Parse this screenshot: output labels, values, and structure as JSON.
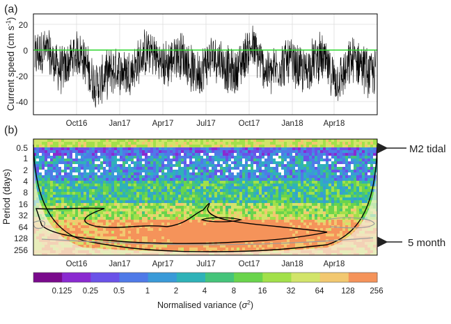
{
  "panel_a": {
    "label": "(a)",
    "ylabel": "Current speed (cm s",
    "ylabel_sup": "-1",
    "ylabel_close": ")"
  },
  "panel_b": {
    "label": "(b)",
    "ylabel": "Period (days)"
  },
  "annotations": {
    "m2": "M2 tidal",
    "five_month": "5 month"
  },
  "colorbar": {
    "label_main": "Normalised variance (",
    "label_sym": "σ",
    "label_sup": "2",
    "label_close": ")",
    "tick_labels": [
      "0.125",
      "0.25",
      "0.5",
      "1",
      "2",
      "4",
      "8",
      "16",
      "32",
      "64",
      "128",
      "256"
    ],
    "colors": [
      "#7a0a8c",
      "#8a2ad0",
      "#6a52e8",
      "#4f7ae8",
      "#3a9ad8",
      "#2fb2b8",
      "#45c47a",
      "#6ad44c",
      "#a2e04a",
      "#d2e46a",
      "#f2c870",
      "#f5935a"
    ]
  },
  "chart_data": [
    {
      "type": "line",
      "title": "",
      "xlabel": "",
      "ylabel": "Current speed (cm s-1)",
      "x_tick_labels": [
        "Oct16",
        "Jan17",
        "Apr17",
        "Jul17",
        "Oct17",
        "Jan18",
        "Apr18"
      ],
      "y_ticks": [
        20,
        0,
        -20,
        -40
      ],
      "ylim": [
        -50,
        25
      ],
      "grid": true,
      "series": [
        {
          "color": "#000000",
          "values": [
            {
              "x": "Aug16",
              "y": -8
            },
            {
              "x": "Sep16",
              "y": -12
            },
            {
              "x": "Oct16",
              "y": -15
            },
            {
              "x": "Nov16",
              "y": -10
            },
            {
              "x": "Dec16",
              "y": -18
            },
            {
              "x": "Jan17",
              "y": -20
            },
            {
              "x": "Feb17",
              "y": -12
            },
            {
              "x": "Mar17",
              "y": -14
            },
            {
              "x": "Apr17",
              "y": -10
            },
            {
              "x": "May17",
              "y": -8
            },
            {
              "x": "Jun17",
              "y": -12
            },
            {
              "x": "Jul17",
              "y": -6
            },
            {
              "x": "Aug17",
              "y": -14
            },
            {
              "x": "Sep17",
              "y": -16
            },
            {
              "x": "Oct17",
              "y": -10
            },
            {
              "x": "Nov17",
              "y": -12
            },
            {
              "x": "Dec17",
              "y": -14
            },
            {
              "x": "Jan18",
              "y": -8
            },
            {
              "x": "Feb18",
              "y": -12
            },
            {
              "x": "Mar18",
              "y": -20
            },
            {
              "x": "Apr18",
              "y": -22
            },
            {
              "x": "May18",
              "y": -14
            },
            {
              "x": "Jun18",
              "y": -10
            }
          ]
        },
        {
          "color": "#2bd62b",
          "values": [
            {
              "x": "start",
              "y": 0
            },
            {
              "x": "end",
              "y": 0
            }
          ]
        }
      ]
    },
    {
      "type": "heatmap",
      "title": "",
      "xlabel": "",
      "ylabel": "Period (days)",
      "x_tick_labels": [
        "Oct16",
        "Jan17",
        "Apr17",
        "Jul17",
        "Oct17",
        "Jan18",
        "Apr18"
      ],
      "y_tick_labels": [
        "0.5",
        "1",
        "2",
        "4",
        "8",
        "16",
        "32",
        "64",
        "128",
        "256"
      ],
      "y_scale": "log2",
      "value_label": "Normalised variance (σ2)",
      "highlight_periods": [
        {
          "period_days": 0.5,
          "label": "M2 tidal"
        },
        {
          "period_days": 150,
          "label": "5 month"
        }
      ]
    }
  ]
}
